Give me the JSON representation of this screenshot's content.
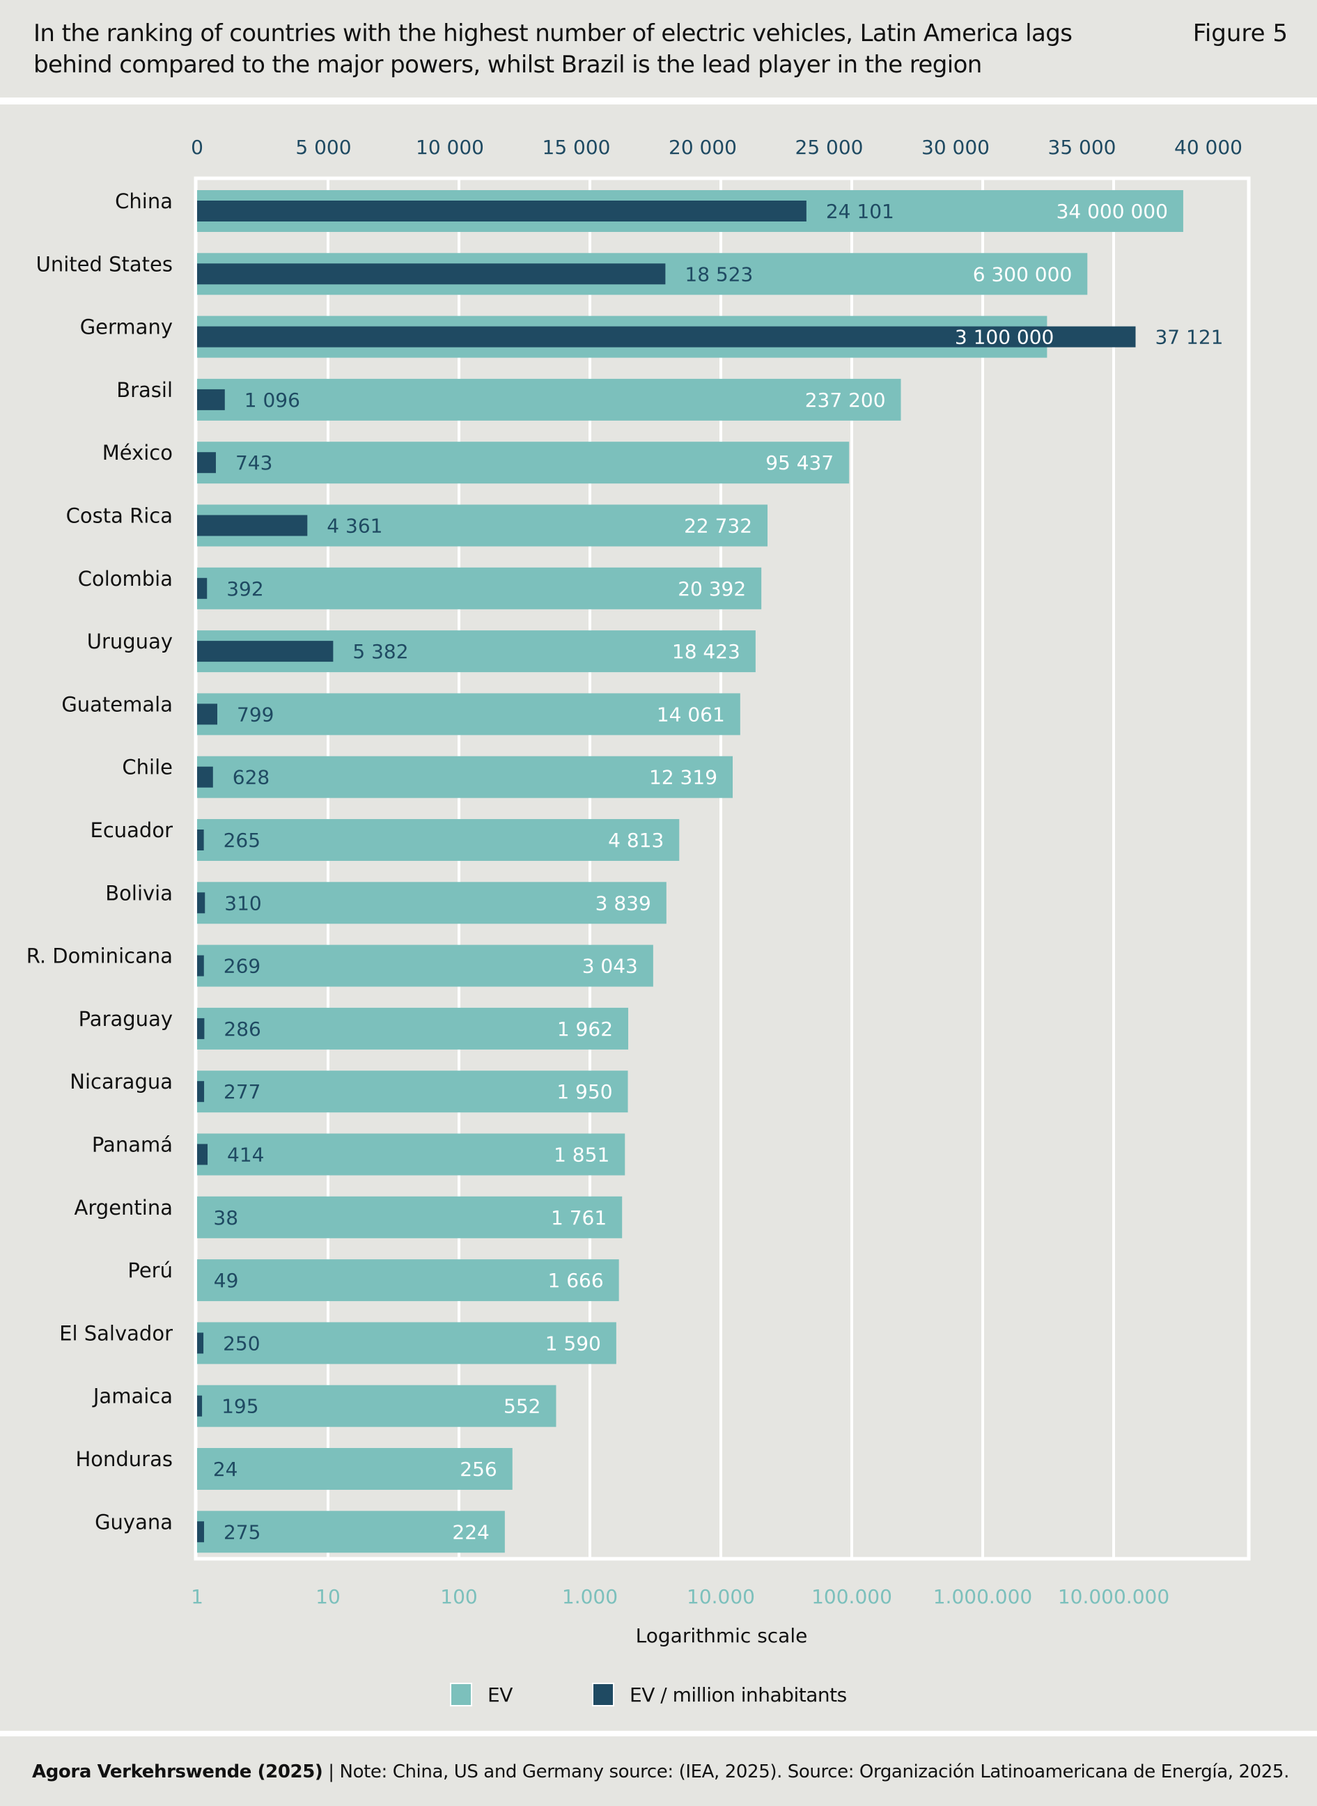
{
  "header": {
    "title": "In the ranking of countries with the highest number of electric vehicles, Latin America lags behind compared to the major powers, whilst Brazil is the lead player in the region",
    "figure_label": "Figure 5"
  },
  "footer": {
    "source_bold": "Agora Verkehrswende (2025)",
    "separator": "|",
    "note": "Note: China, US and Germany source: (IEA, 2025). Source: Organización Latinoamericana de Energía, 2025."
  },
  "colors": {
    "ev": "#7cc0bc",
    "ev_per_million": "#1f4a62",
    "background": "#e5e5e1",
    "grid": "#ffffff",
    "top_axis_text": "#1f4a62",
    "bottom_axis_text": "#7cc0bc"
  },
  "chart_data": {
    "type": "bar",
    "orientation": "horizontal",
    "title": "In the ranking of countries with the highest number of electric vehicles, Latin America lags behind compared to the major powers, whilst Brazil is the lead player in the region",
    "categories": [
      "China",
      "United States",
      "Germany",
      "Brasil",
      "México",
      "Costa Rica",
      "Colombia",
      "Uruguay",
      "Guatemala",
      "Chile",
      "Ecuador",
      "Bolivia",
      "R. Dominicana",
      "Paraguay",
      "Nicaragua",
      "Panamá",
      "Argentina",
      "Perú",
      "El Salvador",
      "Jamaica",
      "Honduras",
      "Guyana"
    ],
    "series": [
      {
        "name": "EV",
        "axis": "bottom-log",
        "values": [
          34000000,
          6300000,
          3100000,
          237200,
          95437,
          22732,
          20392,
          18423,
          14061,
          12319,
          4813,
          3839,
          3043,
          1962,
          1950,
          1851,
          1761,
          1666,
          1590,
          552,
          256,
          224
        ],
        "labels": [
          "34 000 000",
          "6 300 000",
          "3 100 000",
          "237 200",
          "95 437",
          "22 732",
          "20 392",
          "18 423",
          "14 061",
          "12 319",
          "4 813",
          "3 839",
          "3 043",
          "1 962",
          "1 950",
          "1 851",
          "1 761",
          "1 666",
          "1 590",
          "552",
          "256",
          "224"
        ]
      },
      {
        "name": "EV / million inhabitants",
        "axis": "top-linear",
        "values": [
          24101,
          18523,
          37121,
          1096,
          743,
          4361,
          392,
          5382,
          799,
          628,
          265,
          310,
          269,
          286,
          277,
          414,
          38,
          49,
          250,
          195,
          24,
          275
        ],
        "labels": [
          "24 101",
          "18 523",
          "37 121",
          "1 096",
          "743",
          "4 361",
          "392",
          "5 382",
          "799",
          "628",
          "265",
          "310",
          "269",
          "286",
          "277",
          "414",
          "38",
          "49",
          "250",
          "195",
          "24",
          "275"
        ]
      }
    ],
    "top_axis": {
      "scale": "linear",
      "range": [
        0,
        40000
      ],
      "ticks": [
        0,
        5000,
        10000,
        15000,
        20000,
        25000,
        30000,
        35000,
        40000
      ],
      "tick_labels": [
        "0",
        "5 000",
        "10 000",
        "15 000",
        "20 000",
        "25 000",
        "30 000",
        "35 000",
        "40 000"
      ]
    },
    "bottom_axis": {
      "scale": "log",
      "range": [
        1,
        100000000
      ],
      "ticks": [
        1,
        10,
        100,
        1000,
        10000,
        100000,
        1000000,
        10000000
      ],
      "tick_labels": [
        "1",
        "10",
        "100",
        "1.000",
        "10.000",
        "100.000",
        "1.000.000",
        "10.000.000"
      ],
      "label": "Logarithmic scale"
    },
    "grid": true,
    "legend": {
      "position": "bottom-center",
      "entries": [
        "EV",
        "EV / million inhabitants"
      ]
    }
  }
}
